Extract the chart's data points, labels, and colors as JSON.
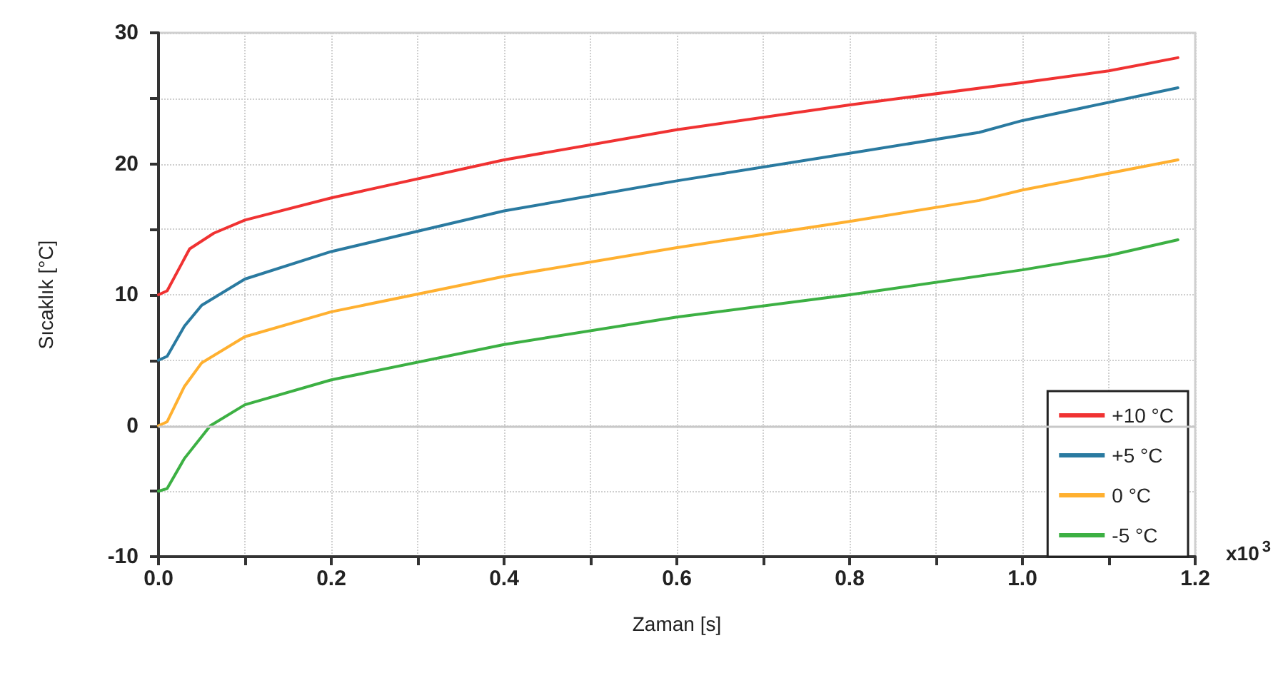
{
  "chart_data": {
    "type": "line",
    "xlabel": "Zaman [s]",
    "ylabel": "Sıcaklık [°C]",
    "annotations": [
      "x10$^{3}$"
    ],
    "xlim": [
      0,
      1.2
    ],
    "xticks": [
      {
        "value": 0,
        "label": "0.0"
      },
      {
        "value": 0.1,
        "label": null
      },
      0.2,
      {
        "value": 0.3,
        "label": null
      },
      0.4,
      {
        "value": 0.5,
        "label": null
      },
      0.6,
      {
        "value": 0.7,
        "label": null
      },
      0.8,
      {
        "value": 0.9,
        "label": null
      },
      {
        "value": 1,
        "label": "1.0"
      },
      {
        "value": 1.1,
        "label": null
      },
      1.2
    ],
    "ylim": [
      -10,
      30
    ],
    "yticks": [
      -10,
      {
        "value": -5,
        "label": null
      },
      0,
      {
        "value": 5,
        "label": null
      },
      10,
      {
        "value": 15,
        "label": null
      },
      20,
      {
        "value": 25,
        "label": null
      },
      30
    ],
    "grid": true,
    "legend": "bottom right",
    "marker": "none",
    "line_style": "solid",
    "ref_lines": [
      {
        "axis": "y",
        "value": 0,
        "color": "#c8c8c8"
      }
    ],
    "series": [
      {
        "name": "+10 °C",
        "color": "#f03232",
        "x": [
          0,
          0.01,
          0.036,
          0.064,
          0.1,
          0.2,
          0.4,
          0.6,
          0.8,
          1.0,
          1.1,
          1.18
        ],
        "values": [
          10,
          10.3,
          13.5,
          14.7,
          15.7,
          17.4,
          20.3,
          22.6,
          24.5,
          26.2,
          27.1,
          28.1
        ]
      },
      {
        "name": "+5 °C",
        "color": "#2a7aa0",
        "x": [
          0,
          0.01,
          0.03,
          0.05,
          0.1,
          0.2,
          0.4,
          0.6,
          0.8,
          0.95,
          1.0,
          1.18
        ],
        "values": [
          5,
          5.3,
          7.6,
          9.2,
          11.2,
          13.3,
          16.4,
          18.7,
          20.8,
          22.4,
          23.3,
          25.8
        ]
      },
      {
        "name": "0 °C",
        "color": "#ffb030",
        "x": [
          0,
          0.01,
          0.03,
          0.05,
          0.1,
          0.2,
          0.4,
          0.6,
          0.8,
          0.95,
          1.0,
          1.18
        ],
        "values": [
          0,
          0.3,
          3,
          4.8,
          6.8,
          8.7,
          11.4,
          13.6,
          15.6,
          17.2,
          18,
          20.3
        ]
      },
      {
        "name": "-5 °C",
        "color": "#3cb043",
        "x": [
          0,
          0.01,
          0.03,
          0.06,
          0.1,
          0.2,
          0.4,
          0.6,
          0.8,
          1.0,
          1.1,
          1.18
        ],
        "values": [
          -5,
          -4.8,
          -2.5,
          0,
          1.6,
          3.5,
          6.2,
          8.3,
          10,
          11.9,
          13,
          14.2
        ]
      }
    ]
  }
}
